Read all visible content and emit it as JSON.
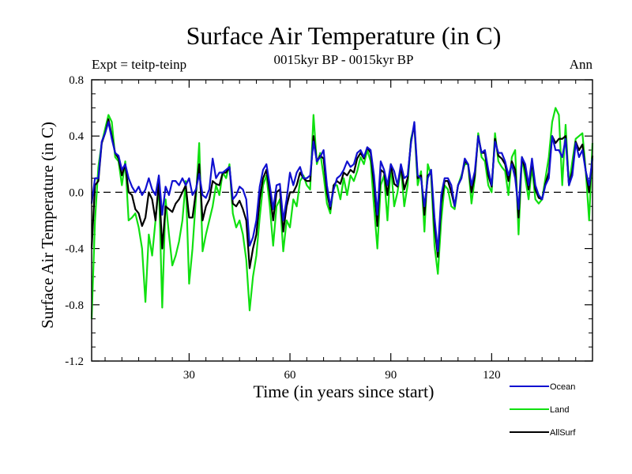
{
  "chart_data": {
    "type": "line",
    "title": "Surface Air Temperature (in C)",
    "subtitle": "0015kyr BP - 0015kyr BP",
    "left_label": "Expt = teitp-teinp",
    "right_label": "Ann",
    "xlabel": "Time (in years since start)",
    "ylabel": "Surface Air Temperature (in C)",
    "xlim": [
      1,
      150
    ],
    "ylim": [
      -1.2,
      0.8
    ],
    "xticks": [
      30,
      60,
      90,
      120
    ],
    "yticks": [
      -1.2,
      -0.8,
      -0.4,
      0.0,
      0.4,
      0.8
    ],
    "ytick_labels": [
      "-1.2",
      "-0.8",
      "-0.4",
      "0.0",
      "0.4",
      "0.8"
    ],
    "zero_line": true,
    "legend_position": "bottom-right, below plot",
    "series": [
      {
        "name": "Ocean",
        "color": "#1010d0",
        "values": [
          -0.08,
          0.1,
          0.1,
          0.36,
          0.42,
          0.5,
          0.38,
          0.28,
          0.26,
          0.16,
          0.2,
          0.1,
          0.04,
          0.0,
          0.04,
          -0.02,
          0.02,
          0.1,
          0.02,
          -0.02,
          0.12,
          -0.16,
          0.04,
          -0.02,
          0.08,
          0.08,
          0.05,
          0.1,
          0.05,
          0.1,
          -0.02,
          0.02,
          0.13,
          -0.02,
          -0.04,
          0.02,
          0.24,
          0.1,
          0.14,
          0.14,
          0.16,
          0.18,
          -0.05,
          -0.02,
          0.04,
          0.02,
          -0.05,
          -0.38,
          -0.32,
          -0.2,
          0.04,
          0.16,
          0.2,
          0.05,
          -0.12,
          0.05,
          0.06,
          -0.2,
          -0.05,
          0.14,
          0.05,
          0.14,
          0.18,
          0.1,
          0.1,
          0.12,
          0.36,
          0.22,
          0.25,
          0.3,
          0.05,
          -0.1,
          0.02,
          0.1,
          0.12,
          0.16,
          0.22,
          0.18,
          0.2,
          0.28,
          0.3,
          0.25,
          0.32,
          0.3,
          0.12,
          -0.16,
          0.22,
          0.16,
          0.05,
          0.2,
          0.15,
          0.05,
          0.2,
          0.1,
          0.12,
          0.35,
          0.5,
          0.12,
          0.1,
          -0.1,
          0.1,
          0.16,
          -0.18,
          -0.42,
          -0.02,
          0.1,
          0.1,
          0.05,
          -0.1,
          0.05,
          0.1,
          0.24,
          0.2,
          0.05,
          0.15,
          0.4,
          0.28,
          0.3,
          0.16,
          0.05,
          0.36,
          0.28,
          0.28,
          0.22,
          0.12,
          0.2,
          0.1,
          -0.12,
          0.25,
          0.2,
          0.05,
          0.24,
          0.05,
          -0.02,
          -0.05,
          0.05,
          0.1,
          0.4,
          0.3,
          0.3,
          0.25,
          0.38,
          0.05,
          0.12,
          0.35,
          0.25,
          0.3,
          0.15,
          0.05,
          0.24
        ]
      },
      {
        "name": "Land",
        "color": "#10e010",
        "values": [
          -0.9,
          -0.2,
          0.18,
          0.35,
          0.45,
          0.55,
          0.5,
          0.25,
          0.22,
          0.05,
          0.22,
          -0.2,
          -0.18,
          -0.15,
          -0.25,
          -0.4,
          -0.78,
          -0.3,
          -0.45,
          -0.2,
          0.05,
          -0.82,
          -0.05,
          -0.3,
          -0.52,
          -0.45,
          -0.35,
          -0.2,
          0.08,
          -0.65,
          -0.4,
          -0.05,
          0.35,
          -0.42,
          -0.3,
          -0.2,
          -0.1,
          0.05,
          -0.02,
          0.14,
          0.1,
          0.2,
          -0.15,
          -0.25,
          -0.2,
          -0.3,
          -0.48,
          -0.84,
          -0.6,
          -0.45,
          -0.18,
          0.05,
          0.12,
          -0.1,
          -0.38,
          -0.1,
          -0.05,
          -0.42,
          -0.2,
          -0.25,
          -0.05,
          -0.1,
          0.08,
          0.12,
          0.05,
          0.02,
          0.55,
          0.2,
          0.28,
          0.12,
          -0.08,
          -0.15,
          0.05,
          0.05,
          -0.05,
          0.1,
          -0.02,
          0.12,
          0.08,
          0.15,
          0.25,
          0.2,
          0.3,
          0.22,
          -0.1,
          -0.4,
          0.05,
          0.12,
          -0.2,
          0.2,
          -0.1,
          0.0,
          0.18,
          -0.1,
          0.05,
          0.38,
          0.48,
          0.05,
          0.15,
          -0.28,
          0.2,
          0.12,
          -0.38,
          -0.58,
          -0.2,
          0.05,
          0.02,
          -0.1,
          -0.12,
          0.05,
          0.12,
          0.2,
          0.2,
          -0.08,
          0.1,
          0.42,
          0.25,
          0.22,
          0.05,
          0.0,
          0.42,
          0.22,
          0.18,
          0.15,
          -0.02,
          0.25,
          0.3,
          -0.3,
          0.25,
          0.1,
          -0.05,
          0.18,
          -0.05,
          -0.08,
          -0.05,
          0.1,
          0.25,
          0.5,
          0.6,
          0.55,
          0.05,
          0.48,
          0.05,
          0.22,
          0.38,
          0.4,
          0.42,
          0.15,
          -0.2,
          0.35
        ]
      },
      {
        "name": "AllSurf",
        "color": "#000000",
        "values": [
          -0.4,
          0.05,
          0.08,
          0.35,
          0.42,
          0.52,
          0.4,
          0.28,
          0.24,
          0.12,
          0.2,
          0.0,
          -0.02,
          -0.12,
          -0.15,
          -0.24,
          -0.18,
          0.0,
          -0.05,
          -0.2,
          0.08,
          -0.4,
          -0.1,
          -0.12,
          -0.14,
          -0.08,
          -0.05,
          0.0,
          0.05,
          -0.18,
          -0.18,
          0.0,
          0.2,
          -0.2,
          -0.1,
          -0.05,
          0.08,
          0.06,
          0.05,
          0.14,
          0.14,
          0.18,
          -0.08,
          -0.1,
          -0.06,
          -0.12,
          -0.2,
          -0.54,
          -0.4,
          -0.3,
          -0.05,
          0.1,
          0.16,
          0.0,
          -0.2,
          0.0,
          0.02,
          -0.28,
          -0.1,
          0.0,
          0.0,
          0.05,
          0.14,
          0.1,
          0.08,
          0.08,
          0.4,
          0.22,
          0.26,
          0.24,
          0.0,
          -0.12,
          0.05,
          0.08,
          0.06,
          0.14,
          0.12,
          0.16,
          0.14,
          0.24,
          0.28,
          0.24,
          0.32,
          0.28,
          0.05,
          -0.24,
          0.16,
          0.14,
          -0.02,
          0.2,
          0.06,
          0.04,
          0.18,
          0.02,
          0.1,
          0.36,
          0.48,
          0.1,
          0.12,
          -0.16,
          0.12,
          0.14,
          -0.24,
          -0.46,
          -0.08,
          0.08,
          0.08,
          0.0,
          -0.1,
          0.05,
          0.1,
          0.22,
          0.2,
          0.0,
          0.12,
          0.4,
          0.28,
          0.28,
          0.12,
          0.04,
          0.38,
          0.26,
          0.24,
          0.2,
          0.08,
          0.22,
          0.16,
          -0.18,
          0.25,
          0.16,
          0.02,
          0.22,
          0.02,
          -0.04,
          -0.05,
          0.06,
          0.14,
          0.4,
          0.35,
          0.38,
          0.38,
          0.4,
          0.05,
          0.15,
          0.36,
          0.3,
          0.34,
          0.15,
          0.0,
          0.26
        ]
      }
    ]
  }
}
